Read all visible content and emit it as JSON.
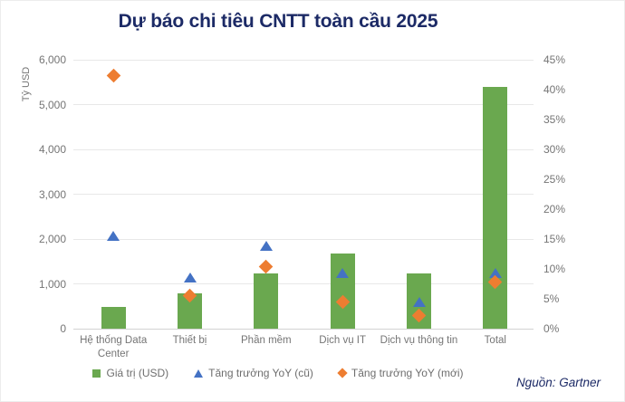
{
  "title": "Dự báo chi tiêu CNTT toàn cầu 2025",
  "source": "Nguồn: Gartner",
  "colors": {
    "title": "#1c2a66",
    "source": "#1c2a66",
    "axis_text": "#757575",
    "gridline": "#e8e8e8",
    "baseline": "#d2d2d2",
    "bar_green": "#6aa84f",
    "marker_blue": "#4472c4",
    "marker_orange": "#ed7d31"
  },
  "chart_data": {
    "type": "bar",
    "title": "Dự báo chi tiêu CNTT toàn cầu 2025",
    "categories": [
      "Hệ thống Data Center",
      "Thiết bị",
      "Phần mềm",
      "Dịch vụ IT",
      "Dịch vụ thông tin",
      "Total"
    ],
    "series": [
      {
        "name": "Giá trị (USD)",
        "chart_type": "bar",
        "axis": "left",
        "unit": "Tỷ USD",
        "color": "#6aa84f",
        "values": [
          475,
          780,
          1230,
          1670,
          1240,
          5400
        ]
      },
      {
        "name": "Tăng trưởng YoY (cũ)",
        "chart_type": "scatter",
        "marker": "triangle",
        "axis": "right",
        "unit": "%",
        "color": "#4472c4",
        "values": [
          15.5,
          8.5,
          13.8,
          9.3,
          4.4,
          9.2
        ]
      },
      {
        "name": "Tăng trưởng YoY (mới)",
        "chart_type": "scatter",
        "marker": "diamond",
        "axis": "right",
        "unit": "%",
        "color": "#ed7d31",
        "values": [
          42.4,
          5.5,
          10.4,
          4.5,
          2.2,
          7.8
        ]
      }
    ],
    "left_axis": {
      "label": "Tỷ USD",
      "min": 0,
      "max": 6000,
      "step": 1000,
      "ticks": [
        "0",
        "1,000",
        "2,000",
        "3,000",
        "4,000",
        "5,000",
        "6,000"
      ]
    },
    "right_axis": {
      "min": 0,
      "max": 45,
      "step": 5,
      "ticks": [
        "0%",
        "5%",
        "10%",
        "15%",
        "20%",
        "25%",
        "30%",
        "35%",
        "40%",
        "45%"
      ]
    },
    "grid": true,
    "legend_position": "bottom"
  }
}
